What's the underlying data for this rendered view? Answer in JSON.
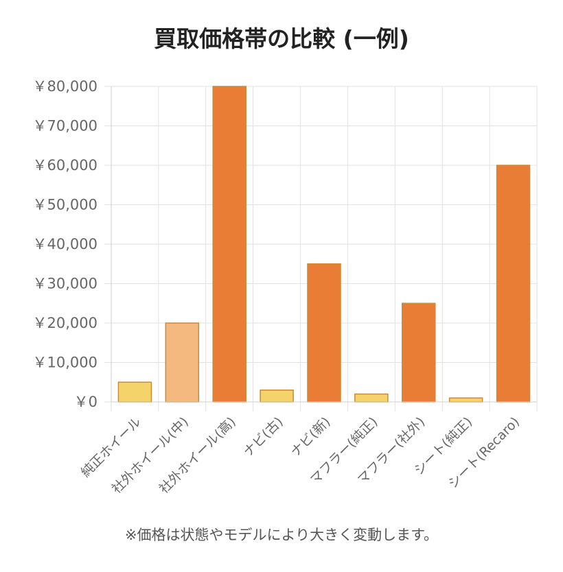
{
  "chart_data": {
    "type": "bar",
    "title": "買取価格帯の比較 (一例)",
    "note": "※価格は状態やモデルにより大きく変動します。",
    "categories": [
      "純正ホイール",
      "社外ホイール(中)",
      "社外ホイール(高)",
      "ナビ(古)",
      "ナビ(新)",
      "マフラー(純正)",
      "マフラー(社外)",
      "シート(純正)",
      "シート(Recaro)"
    ],
    "values": [
      5000,
      20000,
      80000,
      3000,
      35000,
      2000,
      25000,
      1000,
      60000
    ],
    "bar_colors": [
      "#f5d36b",
      "#f4b97f",
      "#e97d36",
      "#f5d36b",
      "#e97d36",
      "#f5d36b",
      "#e97d36",
      "#f5d36b",
      "#e97d36"
    ],
    "bar_border_color": "#c98a3a",
    "ylim": [
      0,
      80000
    ],
    "yticks": [
      0,
      10000,
      20000,
      30000,
      40000,
      50000,
      60000,
      70000,
      80000
    ],
    "ytick_labels": [
      "￥0",
      "￥10,000",
      "￥20,000",
      "￥30,000",
      "￥40,000",
      "￥50,000",
      "￥60,000",
      "￥70,000",
      "￥80,000"
    ],
    "grid": true,
    "grid_color": "#e2e2e2",
    "xlabel": "",
    "ylabel": ""
  }
}
